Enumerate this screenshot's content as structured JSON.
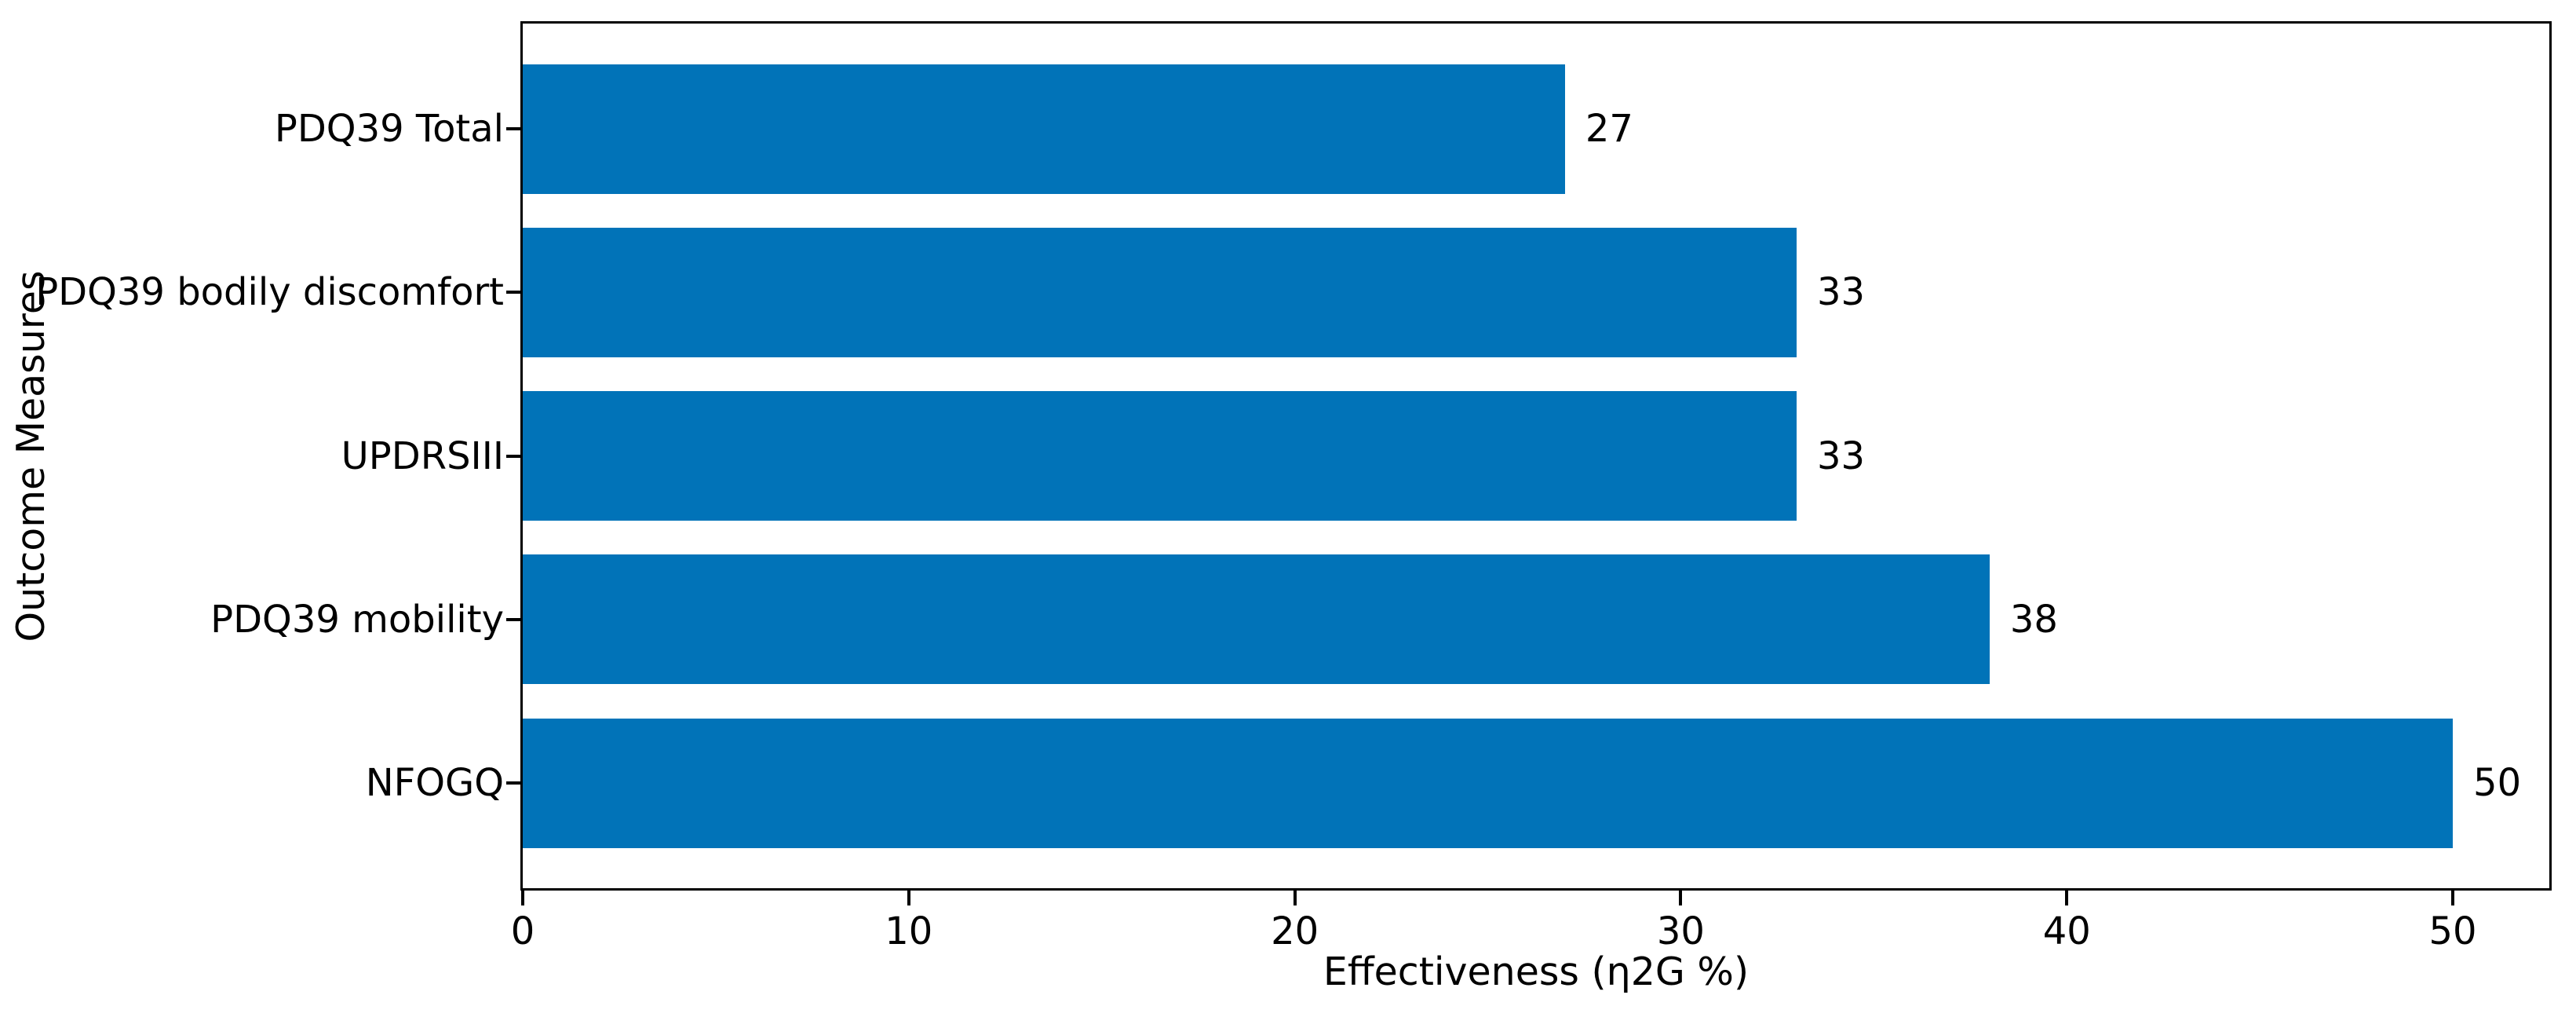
{
  "chart_data": {
    "type": "bar",
    "orientation": "horizontal",
    "order": "top-to-bottom",
    "categories": [
      "PDQ39 Total",
      "PDQ39 bodily discomfort",
      "UPDRSIII",
      "PDQ39 mobility",
      "NFOGQ"
    ],
    "values": [
      27,
      33,
      33,
      38,
      50
    ],
    "bar_labels": [
      "27",
      "33",
      "33",
      "38",
      "50"
    ],
    "title": "",
    "xlabel": "Effectiveness (η2G %)",
    "ylabel": "Outcome Measures",
    "xlim": [
      0,
      52.5
    ],
    "xticks": [
      0,
      10,
      20,
      30,
      40,
      50
    ],
    "grid": false,
    "legend": "none",
    "bar_color": "#0173b8",
    "axis_color": "#000000",
    "text_color": "#000000",
    "background_color": "#ffffff"
  }
}
